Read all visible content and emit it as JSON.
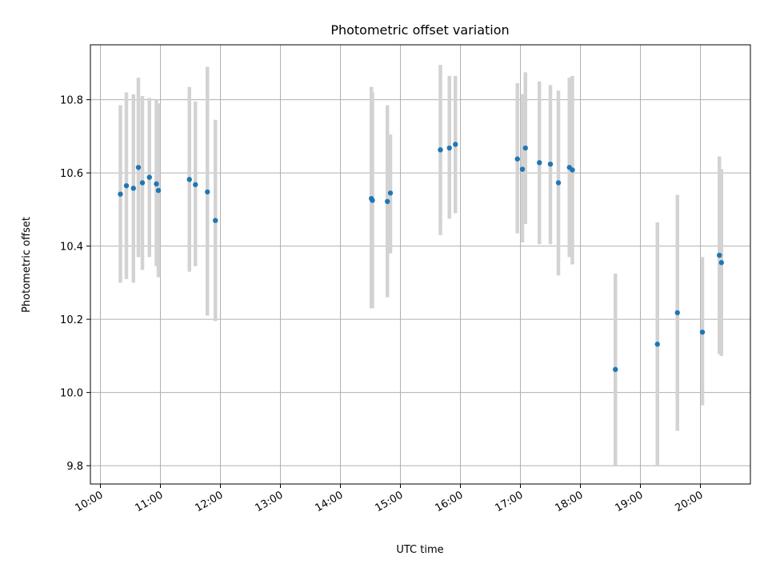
{
  "chart_data": {
    "type": "scatter",
    "title": "Photometric offset variation",
    "xlabel": "UTC time",
    "ylabel": "Photometric offset",
    "xlim": [
      "09:50",
      "20:50"
    ],
    "ylim": [
      9.75,
      10.95
    ],
    "x_ticks": [
      "10:00",
      "11:00",
      "12:00",
      "13:00",
      "14:00",
      "15:00",
      "16:00",
      "17:00",
      "18:00",
      "19:00",
      "20:00"
    ],
    "y_ticks": [
      "9.8",
      "10.0",
      "10.2",
      "10.4",
      "10.6",
      "10.8"
    ],
    "grid": true,
    "point_color": "#1f77b4",
    "error_bar_color": "#d3d3d3",
    "series": [
      {
        "points": [
          {
            "x": "10:20",
            "y": 10.542,
            "lo": 10.3,
            "hi": 10.785
          },
          {
            "x": "10:26",
            "y": 10.565,
            "lo": 10.31,
            "hi": 10.82
          },
          {
            "x": "10:33",
            "y": 10.558,
            "lo": 10.3,
            "hi": 10.815
          },
          {
            "x": "10:38",
            "y": 10.615,
            "lo": 10.37,
            "hi": 10.86
          },
          {
            "x": "10:42",
            "y": 10.573,
            "lo": 10.335,
            "hi": 10.81
          },
          {
            "x": "10:49",
            "y": 10.588,
            "lo": 10.37,
            "hi": 10.805
          },
          {
            "x": "10:56",
            "y": 10.57,
            "lo": 10.345,
            "hi": 10.8
          },
          {
            "x": "10:58",
            "y": 10.552,
            "lo": 10.315,
            "hi": 10.79
          },
          {
            "x": "11:29",
            "y": 10.582,
            "lo": 10.33,
            "hi": 10.835
          },
          {
            "x": "11:35",
            "y": 10.568,
            "lo": 10.345,
            "hi": 10.795
          },
          {
            "x": "11:47",
            "y": 10.548,
            "lo": 10.21,
            "hi": 10.89
          },
          {
            "x": "11:55",
            "y": 10.47,
            "lo": 10.195,
            "hi": 10.745
          },
          {
            "x": "14:31",
            "y": 10.53,
            "lo": 10.23,
            "hi": 10.835
          },
          {
            "x": "14:32",
            "y": 10.525,
            "lo": 10.23,
            "hi": 10.82
          },
          {
            "x": "14:47",
            "y": 10.522,
            "lo": 10.26,
            "hi": 10.785
          },
          {
            "x": "14:50",
            "y": 10.545,
            "lo": 10.38,
            "hi": 10.705
          },
          {
            "x": "15:40",
            "y": 10.663,
            "lo": 10.43,
            "hi": 10.895
          },
          {
            "x": "15:49",
            "y": 10.668,
            "lo": 10.475,
            "hi": 10.865
          },
          {
            "x": "15:55",
            "y": 10.678,
            "lo": 10.49,
            "hi": 10.865
          },
          {
            "x": "16:57",
            "y": 10.638,
            "lo": 10.435,
            "hi": 10.845
          },
          {
            "x": "17:02",
            "y": 10.61,
            "lo": 10.41,
            "hi": 10.815
          },
          {
            "x": "17:05",
            "y": 10.668,
            "lo": 10.46,
            "hi": 10.875
          },
          {
            "x": "17:19",
            "y": 10.628,
            "lo": 10.405,
            "hi": 10.85
          },
          {
            "x": "17:30",
            "y": 10.624,
            "lo": 10.405,
            "hi": 10.84
          },
          {
            "x": "17:38",
            "y": 10.573,
            "lo": 10.32,
            "hi": 10.825
          },
          {
            "x": "17:49",
            "y": 10.615,
            "lo": 10.37,
            "hi": 10.86
          },
          {
            "x": "17:52",
            "y": 10.608,
            "lo": 10.35,
            "hi": 10.865
          },
          {
            "x": "18:35",
            "y": 10.063,
            "lo": 9.8,
            "hi": 10.325
          },
          {
            "x": "19:17",
            "y": 10.132,
            "lo": 9.8,
            "hi": 10.465
          },
          {
            "x": "19:37",
            "y": 10.218,
            "lo": 9.895,
            "hi": 10.54
          },
          {
            "x": "20:02",
            "y": 10.165,
            "lo": 9.965,
            "hi": 10.37
          },
          {
            "x": "20:19",
            "y": 10.375,
            "lo": 10.105,
            "hi": 10.645
          },
          {
            "x": "20:21",
            "y": 10.355,
            "lo": 10.1,
            "hi": 10.61
          }
        ]
      }
    ]
  }
}
